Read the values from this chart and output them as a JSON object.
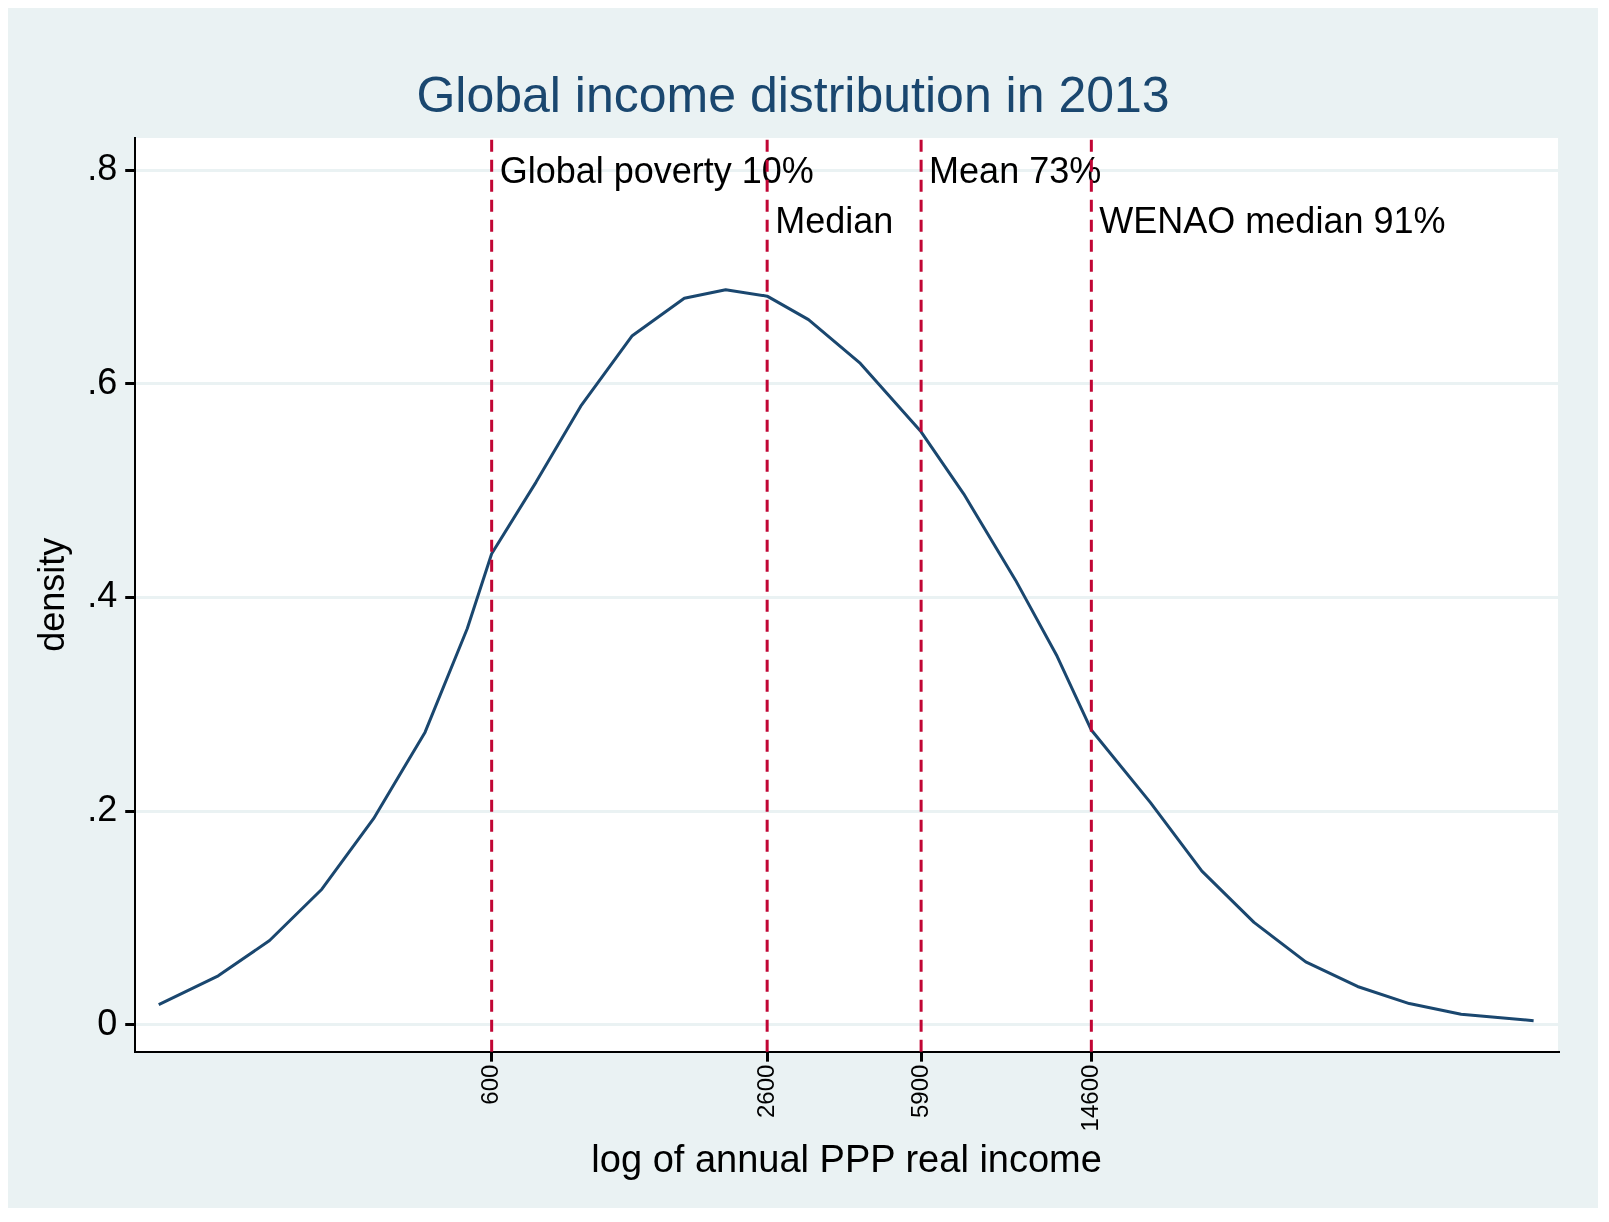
{
  "chart_data": {
    "type": "line",
    "title": "Global income distribution in 2013",
    "xlabel": "log of annual PPP real income",
    "ylabel": "density",
    "log": "x",
    "xlim": [
      90,
      175000
    ],
    "xticks": [
      600,
      2600,
      5900,
      14600
    ],
    "ylim": [
      -0.025,
      0.83
    ],
    "yticks": [
      {
        "value": 0,
        "label": "0"
      },
      {
        "value": 0.2,
        "label": ".2"
      },
      {
        "value": 0.4,
        "label": ".4"
      },
      {
        "value": 0.6,
        "label": ".6"
      },
      {
        "value": 0.8,
        "label": ".8"
      }
    ],
    "grid": "y",
    "legend": false,
    "marker": "none",
    "line_style": "solid",
    "series": [
      {
        "color": "#1a476f",
        "x": [
          102,
          140,
          184,
          243,
          320,
          421,
          527,
          600,
          760,
          964,
          1268,
          1673,
          2085,
          2600,
          3240,
          4270,
          5900,
          7400,
          9760,
          12170,
          14600,
          20000,
          26300,
          34700,
          45700,
          60200,
          79300,
          104500,
          153700
        ],
        "values": [
          0.019,
          0.046,
          0.079,
          0.127,
          0.193,
          0.274,
          0.371,
          0.441,
          0.508,
          0.579,
          0.645,
          0.68,
          0.688,
          0.682,
          0.66,
          0.619,
          0.555,
          0.497,
          0.416,
          0.345,
          0.276,
          0.208,
          0.144,
          0.096,
          0.059,
          0.036,
          0.02,
          0.01,
          0.004
        ]
      }
    ],
    "ref_lines": [
      {
        "axis": "x",
        "value": 600,
        "label": "Global poverty 10%",
        "color": "#c10534",
        "line_style": "dashed"
      },
      {
        "axis": "x",
        "value": 2600,
        "label": "Median",
        "color": "#c10534",
        "line_style": "dashed"
      },
      {
        "axis": "x",
        "value": 5900,
        "label": "Mean 73%",
        "color": "#c10534",
        "line_style": "dashed"
      },
      {
        "axis": "x",
        "value": 14600,
        "label": "WENAO median 91%",
        "color": "#c10534",
        "line_style": "dashed"
      }
    ]
  }
}
